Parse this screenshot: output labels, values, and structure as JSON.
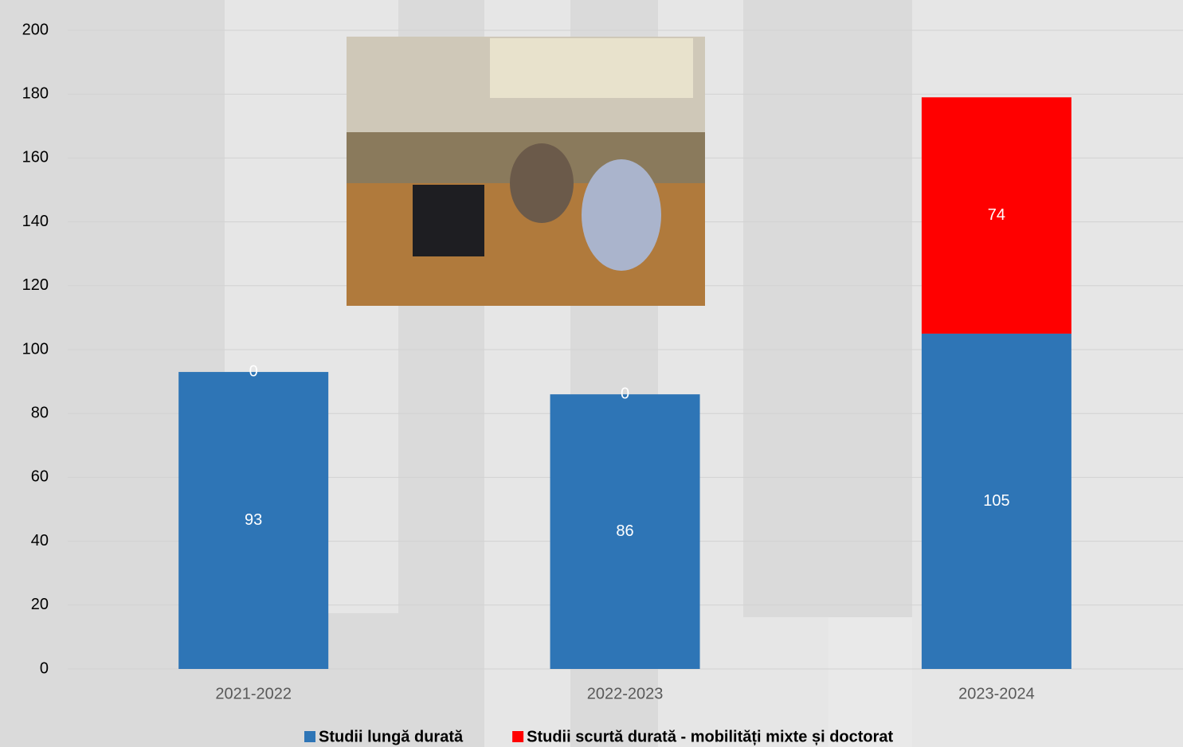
{
  "chart_data": {
    "type": "stacked-bar",
    "categories": [
      "2021-2022",
      "2022-2023",
      "2023-2024"
    ],
    "series": [
      {
        "name": "Studii lungă durată",
        "color": "#2e75b6",
        "values": [
          93,
          86,
          105
        ]
      },
      {
        "name": "Studii scurtă durată - mobilități mixte și doctorat",
        "color": "#ff0000",
        "values": [
          0,
          0,
          74
        ]
      }
    ],
    "ylim": [
      0,
      200
    ],
    "yticks": [
      0,
      20,
      40,
      60,
      80,
      100,
      120,
      140,
      160,
      180,
      200
    ],
    "grid": true,
    "legend": "bottom"
  }
}
